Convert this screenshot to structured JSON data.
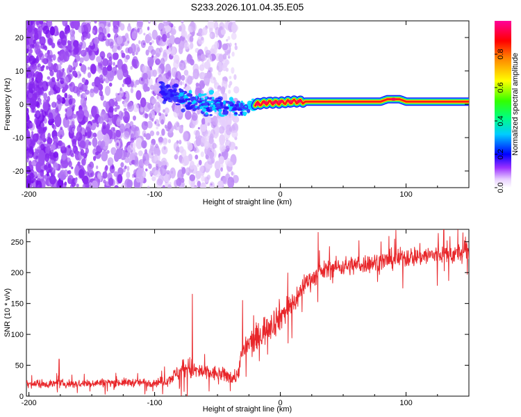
{
  "figure_title": "S233.2026.101.04.35.E05",
  "colors": {
    "snr_line": "#e8262a",
    "noise_purple": "#7a12ee",
    "signal_band": [
      "#1a1aff",
      "#00e5ff",
      "#2ee62e",
      "#ffe600",
      "#ff1a1a"
    ]
  },
  "chart_data": [
    {
      "type": "heatmap",
      "title": "S233.2026.101.04.35.E05",
      "xlabel": "Height of straight line (km)",
      "ylabel": "Frequency (Hz)",
      "xlim": [
        -202,
        150
      ],
      "ylim": [
        -25,
        25
      ],
      "x_ticks": [
        -200,
        -100,
        0,
        100
      ],
      "y_ticks": [
        -20,
        -10,
        0,
        10,
        20
      ],
      "x_tick_labels": [
        "-200",
        "-100",
        "0",
        "100"
      ],
      "y_tick_labels": [
        "-20",
        "-10",
        "0",
        "10",
        "20"
      ],
      "colorbar": {
        "label": "Normalized spectral amplitude",
        "range": [
          0,
          1
        ],
        "ticks": [
          0.0,
          0.2,
          0.4,
          0.6,
          0.8
        ],
        "tick_labels": [
          "0.0",
          "0.2",
          "0.4",
          "0.6",
          "0.8"
        ],
        "colormap": [
          "#ffffff",
          "#e4c8ff",
          "#8a2be2",
          "#0000ff",
          "#00ffff",
          "#00ff00",
          "#ffff00",
          "#ff8c00",
          "#ff0000",
          "#ff00aa"
        ]
      },
      "signal_track": {
        "x": [
          -95,
          -80,
          -60,
          -40,
          -30,
          -20,
          -10,
          0,
          10,
          20,
          40,
          60,
          80,
          85,
          95,
          100,
          120,
          150
        ],
        "freq": [
          4,
          2,
          0,
          -0.5,
          -1.5,
          0,
          0.5,
          0.5,
          0.8,
          0.8,
          0.8,
          0.8,
          0.8,
          1.5,
          1.5,
          0.8,
          0.8,
          0.8
        ],
        "peak_amplitude": [
          0.25,
          0.3,
          0.35,
          0.35,
          0.35,
          0.6,
          0.75,
          0.85,
          0.9,
          0.95,
          0.95,
          0.95,
          0.9,
          0.95,
          0.95,
          0.9,
          0.9,
          0.85
        ]
      },
      "noise_region_xlim": [
        -202,
        -35
      ]
    },
    {
      "type": "line",
      "xlabel": "Height of straight line (km)",
      "ylabel": "SNR (10 * v/v)",
      "xlim": [
        -202,
        150
      ],
      "ylim": [
        0,
        270
      ],
      "x_ticks": [
        -200,
        -100,
        0,
        100
      ],
      "y_ticks": [
        0,
        50,
        100,
        150,
        200,
        250
      ],
      "x_tick_labels": [
        "-200",
        "-100",
        "0",
        "100"
      ],
      "y_tick_labels": [
        "0",
        "50",
        "100",
        "150",
        "200",
        "250"
      ],
      "series": [
        {
          "name": "SNR",
          "x": [
            -200,
            -180,
            -160,
            -140,
            -120,
            -100,
            -90,
            -80,
            -75,
            -70,
            -60,
            -50,
            -40,
            -35,
            -30,
            -25,
            -20,
            -15,
            -10,
            -5,
            0,
            5,
            10,
            15,
            20,
            25,
            30,
            40,
            60,
            80,
            100,
            120,
            140,
            150
          ],
          "mean": [
            20,
            20,
            20,
            22,
            22,
            22,
            25,
            40,
            48,
            42,
            38,
            36,
            32,
            30,
            70,
            85,
            90,
            100,
            115,
            120,
            130,
            140,
            150,
            165,
            185,
            190,
            198,
            208,
            212,
            218,
            225,
            228,
            230,
            235
          ],
          "spread": [
            12,
            12,
            12,
            12,
            12,
            12,
            15,
            25,
            40,
            30,
            25,
            22,
            20,
            22,
            35,
            40,
            45,
            45,
            45,
            45,
            45,
            40,
            40,
            35,
            30,
            28,
            28,
            28,
            28,
            28,
            30,
            30,
            30,
            30
          ],
          "peaks": [
            {
              "x": -176,
              "y": 60
            },
            {
              "x": -70,
              "y": 165
            },
            {
              "x": -30,
              "y": 155
            },
            {
              "x": 30,
              "y": 265
            },
            {
              "x": 130,
              "y": 270
            }
          ]
        }
      ]
    }
  ]
}
